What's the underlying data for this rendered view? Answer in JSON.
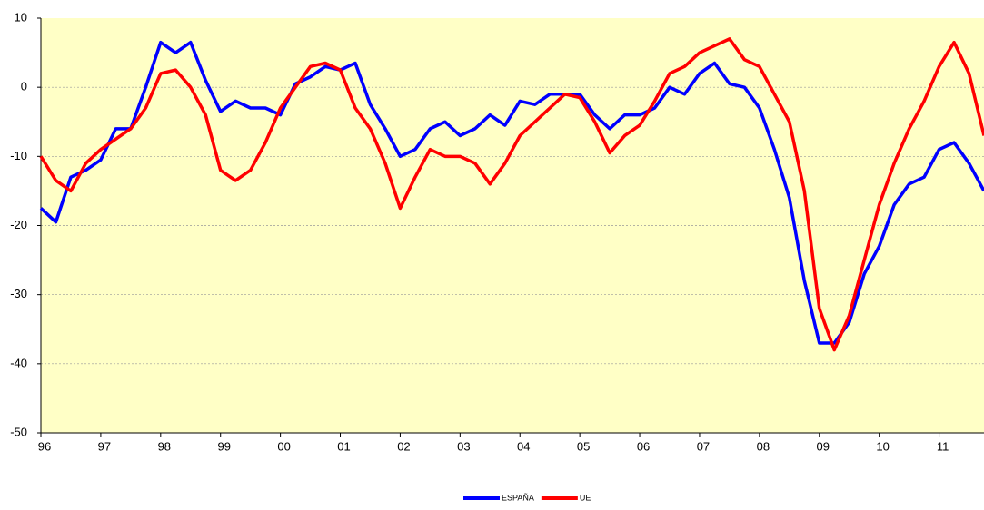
{
  "chart_data": {
    "type": "line",
    "x": [
      1996,
      1996.25,
      1996.5,
      1996.75,
      1997,
      1997.25,
      1997.5,
      1997.75,
      1998,
      1998.25,
      1998.5,
      1998.75,
      1999,
      1999.25,
      1999.5,
      1999.75,
      2000,
      2000.25,
      2000.5,
      2000.75,
      2001,
      2001.25,
      2001.5,
      2001.75,
      2002,
      2002.25,
      2002.5,
      2002.75,
      2003,
      2003.25,
      2003.5,
      2003.75,
      2004,
      2004.25,
      2004.5,
      2004.75,
      2005,
      2005.25,
      2005.5,
      2005.75,
      2006,
      2006.25,
      2006.5,
      2006.75,
      2007,
      2007.25,
      2007.5,
      2007.75,
      2008,
      2008.25,
      2008.5,
      2008.75,
      2009,
      2009.25,
      2009.5,
      2009.75,
      2010,
      2010.25,
      2010.5,
      2010.75,
      2011,
      2011.25,
      2011.5,
      2011.75
    ],
    "series": [
      {
        "name": "ESPAÑA",
        "color": "#0000ff",
        "values": [
          -17.5,
          -19.5,
          -13,
          -12,
          -10.5,
          -6,
          -6,
          0,
          6.5,
          5,
          6.5,
          1,
          -3.5,
          -2,
          -3,
          -3,
          -4,
          0.5,
          1.5,
          3,
          2.5,
          3.5,
          -2.5,
          -6,
          -10,
          -9,
          -6,
          -5,
          -7,
          -6,
          -4,
          -5.5,
          -2,
          -2.5,
          -1,
          -1,
          -1,
          -4,
          -6,
          -4,
          -4,
          -3,
          0,
          -1,
          2,
          3.5,
          0.5,
          0,
          -3,
          -9,
          -16,
          -28,
          -37,
          -37,
          -34,
          -27,
          -23,
          -17,
          -14,
          -13,
          -9,
          -8,
          -11,
          -15
        ]
      },
      {
        "name": "UE",
        "color": "#ff0000",
        "values": [
          -10,
          -13.5,
          -15,
          -11,
          -9,
          -7.5,
          -6,
          -3,
          2,
          2.5,
          0,
          -4,
          -12,
          -13.5,
          -12,
          -8,
          -3,
          0,
          3,
          3.5,
          2.5,
          -3,
          -6,
          -11,
          -17.5,
          -13,
          -9,
          -10,
          -10,
          -11,
          -14,
          -11,
          -7,
          -5,
          -3,
          -1,
          -1.5,
          -5,
          -9.5,
          -7,
          -5.5,
          -2,
          2,
          3,
          5,
          6,
          7,
          4,
          3,
          -1,
          -5,
          -15,
          -32,
          -38,
          -33,
          -25,
          -17,
          -11,
          -6,
          -2,
          3,
          6.5,
          2,
          -7
        ]
      }
    ],
    "xlim": [
      1996,
      2011.75
    ],
    "xticks": [
      {
        "value": 1996,
        "label": "96"
      },
      {
        "value": 1997,
        "label": "97"
      },
      {
        "value": 1998,
        "label": "98"
      },
      {
        "value": 1999,
        "label": "99"
      },
      {
        "value": 2000,
        "label": "00"
      },
      {
        "value": 2001,
        "label": "01"
      },
      {
        "value": 2002,
        "label": "02"
      },
      {
        "value": 2003,
        "label": "03"
      },
      {
        "value": 2004,
        "label": "04"
      },
      {
        "value": 2005,
        "label": "05"
      },
      {
        "value": 2006,
        "label": "06"
      },
      {
        "value": 2007,
        "label": "07"
      },
      {
        "value": 2008,
        "label": "08"
      },
      {
        "value": 2009,
        "label": "09"
      },
      {
        "value": 2010,
        "label": "10"
      },
      {
        "value": 2011,
        "label": "11"
      }
    ],
    "ylim": [
      -50,
      10
    ],
    "yticks": [
      10,
      0,
      -10,
      -20,
      -30,
      -40,
      -50
    ],
    "grid": true,
    "legend": "bottom"
  }
}
